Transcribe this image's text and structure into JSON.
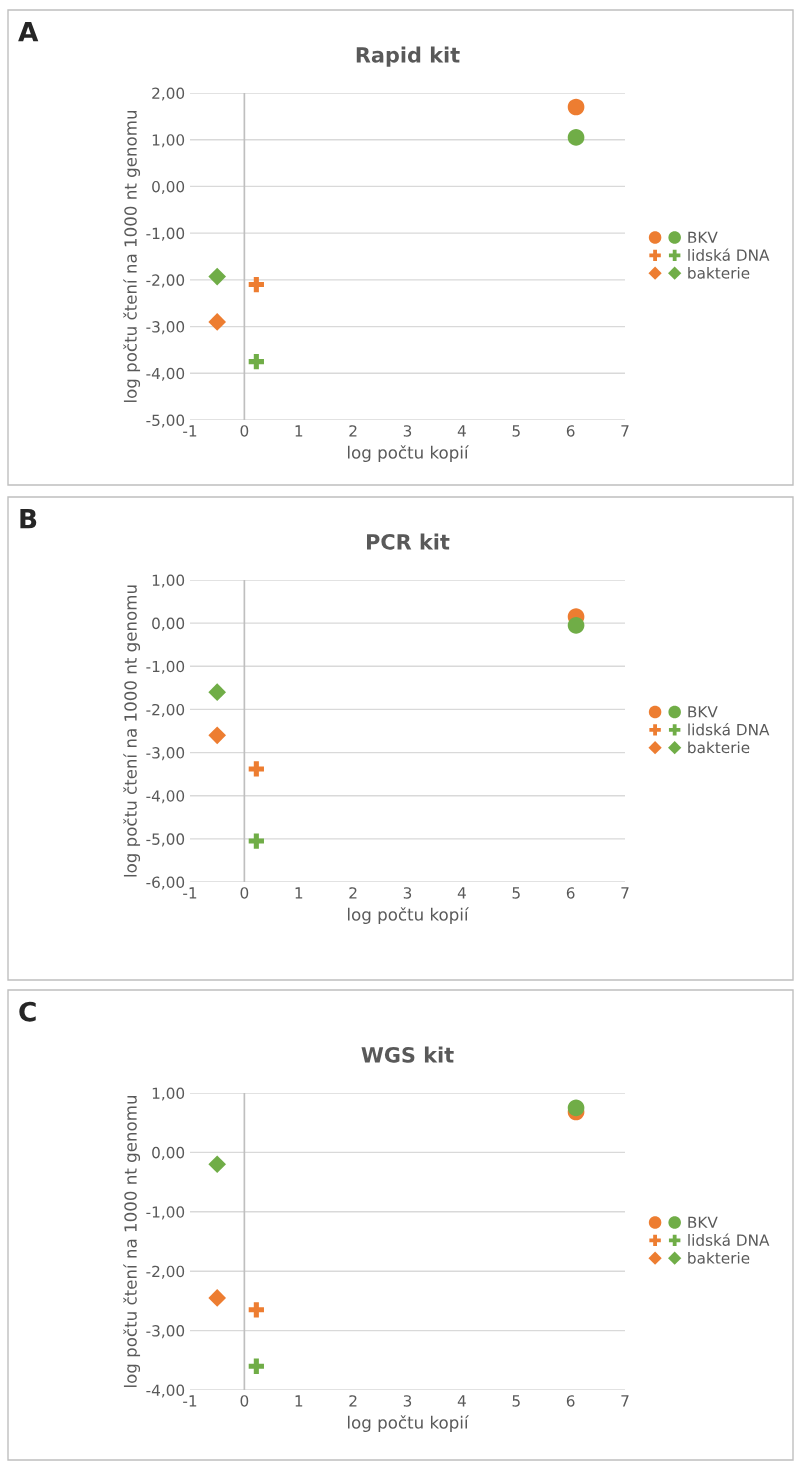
{
  "chart_data": [
    {
      "type": "scatter",
      "title": "Rapid kit",
      "xlabel": "log počtu kopií",
      "ylabel": "log počtu čtení na 1000 nt genomu",
      "annotations": [
        "A"
      ],
      "grid": "y",
      "legend": "right",
      "xlim": [
        -1,
        7
      ],
      "xticks": [
        -1,
        0,
        1,
        2,
        3,
        4,
        5,
        6,
        7
      ],
      "ylim": [
        -5,
        2
      ],
      "yticks": [
        {
          "value": -5,
          "label": "-5,00"
        },
        {
          "value": -4,
          "label": "-4,00"
        },
        {
          "value": -3,
          "label": "-3,00"
        },
        {
          "value": -2,
          "label": "-2,00"
        },
        {
          "value": -1,
          "label": "-1,00"
        },
        {
          "value": 0,
          "label": "0,00"
        },
        {
          "value": 1,
          "label": "1,00"
        },
        {
          "value": 2,
          "label": "2,00"
        }
      ],
      "ref_lines": [
        {
          "axis": "x",
          "value": 0,
          "color": "#bfbfbf"
        }
      ],
      "series": [
        {
          "color": "#ed7d31",
          "marker": "circle",
          "x": [
            6.1
          ],
          "values": [
            1.7
          ]
        },
        {
          "name": "BKV",
          "color": "#70ad47",
          "marker": "circle",
          "x": [
            6.1
          ],
          "values": [
            1.05
          ]
        },
        {
          "color": "#ed7d31",
          "marker": "cross",
          "x": [
            0.22
          ],
          "values": [
            -2.1
          ]
        },
        {
          "name": "lidská DNA",
          "color": "#70ad47",
          "marker": "cross",
          "x": [
            0.22
          ],
          "values": [
            -3.75
          ]
        },
        {
          "color": "#ed7d31",
          "marker": "diamond",
          "x": [
            -0.5
          ],
          "values": [
            -2.9
          ]
        },
        {
          "name": "bakterie",
          "color": "#70ad47",
          "marker": "diamond",
          "x": [
            -0.5
          ],
          "values": [
            -1.93
          ]
        }
      ]
    },
    {
      "type": "scatter",
      "title": "PCR kit",
      "xlabel": "log počtu kopií",
      "ylabel": "log počtu čtení na 1000 nt genomu",
      "annotations": [
        "B"
      ],
      "grid": "y",
      "legend": "right",
      "xlim": [
        -1,
        7
      ],
      "xticks": [
        -1,
        0,
        1,
        2,
        3,
        4,
        5,
        6,
        7
      ],
      "ylim": [
        -6,
        1
      ],
      "yticks": [
        {
          "value": -6,
          "label": "-6,00"
        },
        {
          "value": -5,
          "label": "-5,00"
        },
        {
          "value": -4,
          "label": "-4,00"
        },
        {
          "value": -3,
          "label": "-3,00"
        },
        {
          "value": -2,
          "label": "-2,00"
        },
        {
          "value": -1,
          "label": "-1,00"
        },
        {
          "value": 0,
          "label": "0,00"
        },
        {
          "value": 1,
          "label": "1,00"
        }
      ],
      "ref_lines": [
        {
          "axis": "x",
          "value": 0,
          "color": "#bfbfbf"
        }
      ],
      "series": [
        {
          "color": "#ed7d31",
          "marker": "circle",
          "x": [
            6.1
          ],
          "values": [
            0.15
          ]
        },
        {
          "name": "BKV",
          "color": "#70ad47",
          "marker": "circle",
          "x": [
            6.1
          ],
          "values": [
            -0.05
          ]
        },
        {
          "color": "#ed7d31",
          "marker": "cross",
          "x": [
            0.22
          ],
          "values": [
            -3.38
          ]
        },
        {
          "name": "lidská DNA",
          "color": "#70ad47",
          "marker": "cross",
          "x": [
            0.22
          ],
          "values": [
            -5.05
          ]
        },
        {
          "color": "#ed7d31",
          "marker": "diamond",
          "x": [
            -0.5
          ],
          "values": [
            -2.6
          ]
        },
        {
          "name": "bakterie",
          "color": "#70ad47",
          "marker": "diamond",
          "x": [
            -0.5
          ],
          "values": [
            -1.6
          ]
        }
      ]
    },
    {
      "type": "scatter",
      "title": "WGS kit",
      "xlabel": "log počtu kopií",
      "ylabel": "log počtu čtení na 1000 nt genomu",
      "annotations": [
        "C"
      ],
      "grid": "y",
      "legend": "right",
      "xlim": [
        -1,
        7
      ],
      "xticks": [
        -1,
        0,
        1,
        2,
        3,
        4,
        5,
        6,
        7
      ],
      "ylim": [
        -4,
        1
      ],
      "yticks": [
        {
          "value": -4,
          "label": "-4,00"
        },
        {
          "value": -3,
          "label": "-3,00"
        },
        {
          "value": -2,
          "label": "-2,00"
        },
        {
          "value": -1,
          "label": "-1,00"
        },
        {
          "value": 0,
          "label": "0,00"
        },
        {
          "value": 1,
          "label": "1,00"
        }
      ],
      "ref_lines": [
        {
          "axis": "x",
          "value": 0,
          "color": "#bfbfbf"
        }
      ],
      "series": [
        {
          "color": "#ed7d31",
          "marker": "circle",
          "x": [
            6.1
          ],
          "values": [
            0.68
          ]
        },
        {
          "name": "BKV",
          "color": "#70ad47",
          "marker": "circle",
          "x": [
            6.1
          ],
          "values": [
            0.75
          ]
        },
        {
          "color": "#ed7d31",
          "marker": "cross",
          "x": [
            0.22
          ],
          "values": [
            -2.65
          ]
        },
        {
          "name": "lidská DNA",
          "color": "#70ad47",
          "marker": "cross",
          "x": [
            0.22
          ],
          "values": [
            -3.6
          ]
        },
        {
          "color": "#ed7d31",
          "marker": "diamond",
          "x": [
            -0.5
          ],
          "values": [
            -2.45
          ]
        },
        {
          "name": "bakterie",
          "color": "#70ad47",
          "marker": "diamond",
          "x": [
            -0.5
          ],
          "values": [
            -0.2
          ]
        }
      ]
    }
  ]
}
